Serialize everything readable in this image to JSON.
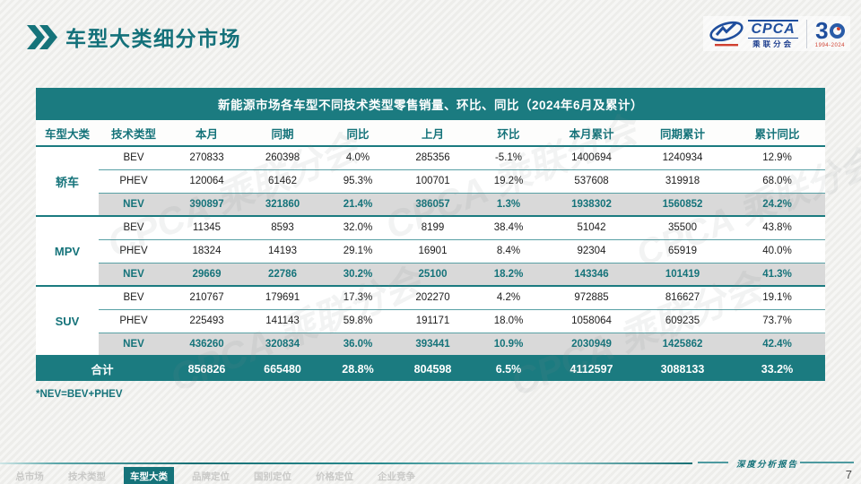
{
  "page": {
    "title": "车型大类细分市场",
    "page_number": "7",
    "footer_report_label": "深度分析报告"
  },
  "logo": {
    "cpca_text": "CPCA",
    "cpca_subtext": "乘联分会",
    "anniversary_number": "30",
    "anniversary_years": "1994-2024"
  },
  "decor": {
    "watermark_text": "CPCA 乘联分会"
  },
  "table": {
    "title": "新能源市场各车型不同技术类型零售销量、环比、同比（2024年6月及累计）",
    "columns": [
      "车型大类",
      "技术类型",
      "本月",
      "同期",
      "同比",
      "上月",
      "环比",
      "本月累计",
      "同期累计",
      "累计同比"
    ],
    "groups": [
      {
        "label": "轿车",
        "rows": [
          {
            "tech": "BEV",
            "highlight": false,
            "values": [
              "270833",
              "260398",
              "4.0%",
              "285356",
              "-5.1%",
              "1400694",
              "1240934",
              "12.9%"
            ]
          },
          {
            "tech": "PHEV",
            "highlight": false,
            "values": [
              "120064",
              "61462",
              "95.3%",
              "100701",
              "19.2%",
              "537608",
              "319918",
              "68.0%"
            ]
          },
          {
            "tech": "NEV",
            "highlight": true,
            "values": [
              "390897",
              "321860",
              "21.4%",
              "386057",
              "1.3%",
              "1938302",
              "1560852",
              "24.2%"
            ]
          }
        ]
      },
      {
        "label": "MPV",
        "rows": [
          {
            "tech": "BEV",
            "highlight": false,
            "values": [
              "11345",
              "8593",
              "32.0%",
              "8199",
              "38.4%",
              "51042",
              "35500",
              "43.8%"
            ]
          },
          {
            "tech": "PHEV",
            "highlight": false,
            "values": [
              "18324",
              "14193",
              "29.1%",
              "16901",
              "8.4%",
              "92304",
              "65919",
              "40.0%"
            ]
          },
          {
            "tech": "NEV",
            "highlight": true,
            "values": [
              "29669",
              "22786",
              "30.2%",
              "25100",
              "18.2%",
              "143346",
              "101419",
              "41.3%"
            ]
          }
        ]
      },
      {
        "label": "SUV",
        "rows": [
          {
            "tech": "BEV",
            "highlight": false,
            "values": [
              "210767",
              "179691",
              "17.3%",
              "202270",
              "4.2%",
              "972885",
              "816627",
              "19.1%"
            ]
          },
          {
            "tech": "PHEV",
            "highlight": false,
            "values": [
              "225493",
              "141143",
              "59.8%",
              "191171",
              "18.0%",
              "1058064",
              "609235",
              "73.7%"
            ]
          },
          {
            "tech": "NEV",
            "highlight": true,
            "values": [
              "436260",
              "320834",
              "36.0%",
              "393441",
              "10.9%",
              "2030949",
              "1425862",
              "42.4%"
            ]
          }
        ]
      }
    ],
    "total": {
      "label": "合计",
      "values": [
        "856826",
        "665480",
        "28.8%",
        "804598",
        "6.5%",
        "4112597",
        "3088133",
        "33.2%"
      ]
    },
    "footnote": "*NEV=BEV+PHEV"
  },
  "nav": {
    "items": [
      {
        "label": "总市场",
        "active": false
      },
      {
        "label": "技术类型",
        "active": false
      },
      {
        "label": "车型大类",
        "active": true
      },
      {
        "label": "品牌定位",
        "active": false
      },
      {
        "label": "国别定位",
        "active": false
      },
      {
        "label": "价格定位",
        "active": false
      },
      {
        "label": "企业竞争",
        "active": false
      }
    ]
  },
  "colors": {
    "teal_main": "#15737a",
    "teal_bar": "#1b7b80",
    "highlight_row_bg": "#d9d9d9",
    "logo_blue": "#1f4e9d",
    "logo_red": "#d04030",
    "nav_inactive": "#c9c9c7"
  }
}
